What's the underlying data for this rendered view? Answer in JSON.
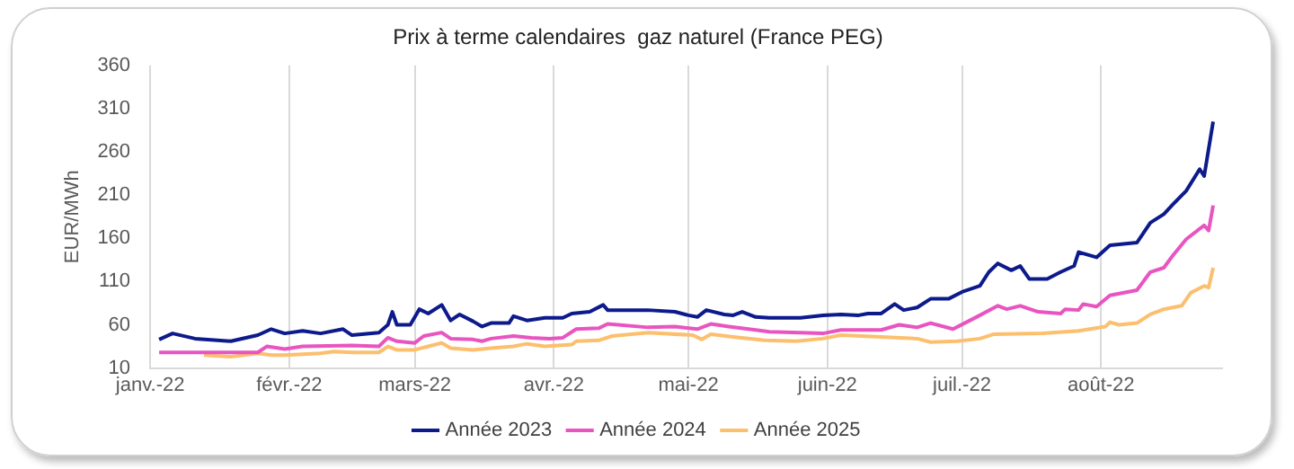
{
  "chart_data": {
    "type": "line",
    "title": "Prix à terme calendaires  gaz naturel (France PEG)",
    "ylabel": "EUR/MWh",
    "xlim": [
      "2022-01-01",
      "2022-08-28"
    ],
    "xticks": [
      {
        "value": "2022-01-01",
        "label": "janv.-22"
      },
      {
        "value": "2022-02-01",
        "label": "févr.-22"
      },
      {
        "value": "2022-03-01",
        "label": "mars-22"
      },
      {
        "value": "2022-04-01",
        "label": "avr.-22"
      },
      {
        "value": "2022-05-01",
        "label": "mai-22"
      },
      {
        "value": "2022-06-01",
        "label": "juin-22"
      },
      {
        "value": "2022-07-01",
        "label": "juil.-22"
      },
      {
        "value": "2022-08-01",
        "label": "août-22"
      }
    ],
    "ylim": [
      10,
      360
    ],
    "yticks": [
      10,
      60,
      110,
      160,
      210,
      260,
      310,
      360
    ],
    "grid": "x",
    "legend": "bottom",
    "marker": "none",
    "line_style": "solid",
    "series": [
      {
        "name": "Année 2023",
        "color": "#0d1a8c",
        "x": [
          "2022-01-03",
          "2022-01-06",
          "2022-01-11",
          "2022-01-19",
          "2022-01-25",
          "2022-01-28",
          "2022-01-31",
          "2022-02-04",
          "2022-02-08",
          "2022-02-13",
          "2022-02-15",
          "2022-02-21",
          "2022-02-23",
          "2022-02-24",
          "2022-02-25",
          "2022-02-28",
          "2022-03-02",
          "2022-03-04",
          "2022-03-07",
          "2022-03-09",
          "2022-03-11",
          "2022-03-14",
          "2022-03-16",
          "2022-03-18",
          "2022-03-22",
          "2022-03-23",
          "2022-03-26",
          "2022-03-30",
          "2022-04-03",
          "2022-04-05",
          "2022-04-09",
          "2022-04-12",
          "2022-04-13",
          "2022-04-22",
          "2022-04-28",
          "2022-05-01",
          "2022-05-03",
          "2022-05-05",
          "2022-05-09",
          "2022-05-11",
          "2022-05-13",
          "2022-05-16",
          "2022-05-19",
          "2022-05-26",
          "2022-05-31",
          "2022-06-04",
          "2022-06-08",
          "2022-06-10",
          "2022-06-13",
          "2022-06-16",
          "2022-06-18",
          "2022-06-21",
          "2022-06-24",
          "2022-06-28",
          "2022-07-01",
          "2022-07-05",
          "2022-07-07",
          "2022-07-09",
          "2022-07-12",
          "2022-07-14",
          "2022-07-16",
          "2022-07-20",
          "2022-07-23",
          "2022-07-26",
          "2022-07-27",
          "2022-07-31",
          "2022-08-03",
          "2022-08-09",
          "2022-08-12",
          "2022-08-15",
          "2022-08-17",
          "2022-08-20",
          "2022-08-23",
          "2022-08-24",
          "2022-08-26"
        ],
        "values": [
          43,
          50,
          44,
          41,
          48,
          55,
          50,
          53,
          50,
          55,
          48,
          51,
          60,
          75,
          60,
          60,
          78,
          73,
          83,
          65,
          72,
          64,
          58,
          62,
          62,
          70,
          65,
          68,
          68,
          73,
          75,
          83,
          77,
          77,
          75,
          71,
          69,
          77,
          72,
          71,
          75,
          69,
          68,
          68,
          71,
          72,
          71,
          73,
          73,
          84,
          77,
          80,
          90,
          90,
          98,
          105,
          121,
          131,
          123,
          128,
          113,
          113,
          121,
          128,
          144,
          138,
          152,
          155,
          178,
          188,
          199,
          215,
          240,
          232,
          295
        ]
      },
      {
        "name": "Année 2024",
        "color": "#e855c0",
        "x": [
          "2022-01-03",
          "2022-01-25",
          "2022-01-27",
          "2022-01-31",
          "2022-02-04",
          "2022-02-15",
          "2022-02-21",
          "2022-02-23",
          "2022-02-25",
          "2022-03-01",
          "2022-03-03",
          "2022-03-07",
          "2022-03-09",
          "2022-03-14",
          "2022-03-16",
          "2022-03-18",
          "2022-03-23",
          "2022-03-27",
          "2022-03-31",
          "2022-04-03",
          "2022-04-06",
          "2022-04-11",
          "2022-04-13",
          "2022-04-22",
          "2022-04-28",
          "2022-05-03",
          "2022-05-06",
          "2022-05-10",
          "2022-05-16",
          "2022-05-19",
          "2022-05-31",
          "2022-06-04",
          "2022-06-13",
          "2022-06-17",
          "2022-06-21",
          "2022-06-24",
          "2022-06-29",
          "2022-07-02",
          "2022-07-05",
          "2022-07-09",
          "2022-07-11",
          "2022-07-14",
          "2022-07-18",
          "2022-07-23",
          "2022-07-24",
          "2022-07-27",
          "2022-07-28",
          "2022-07-31",
          "2022-08-03",
          "2022-08-09",
          "2022-08-12",
          "2022-08-15",
          "2022-08-17",
          "2022-08-20",
          "2022-08-24",
          "2022-08-25",
          "2022-08-26"
        ],
        "values": [
          28,
          28,
          35,
          32,
          35,
          36,
          35,
          45,
          41,
          39,
          47,
          51,
          44,
          43,
          41,
          44,
          47,
          45,
          44,
          45,
          55,
          56,
          61,
          57,
          58,
          55,
          61,
          58,
          54,
          52,
          50,
          54,
          54,
          60,
          57,
          62,
          55,
          63,
          71,
          82,
          78,
          82,
          75,
          73,
          78,
          77,
          84,
          81,
          94,
          100,
          121,
          126,
          140,
          159,
          175,
          169,
          198
        ]
      },
      {
        "name": "Année 2025",
        "color": "#fcbf6e",
        "x": [
          "2022-01-13",
          "2022-01-19",
          "2022-01-25",
          "2022-01-28",
          "2022-01-31",
          "2022-02-08",
          "2022-02-11",
          "2022-02-15",
          "2022-02-21",
          "2022-02-23",
          "2022-02-25",
          "2022-03-01",
          "2022-03-04",
          "2022-03-07",
          "2022-03-09",
          "2022-03-14",
          "2022-03-18",
          "2022-03-23",
          "2022-03-26",
          "2022-03-30",
          "2022-04-05",
          "2022-04-06",
          "2022-04-11",
          "2022-04-14",
          "2022-04-22",
          "2022-05-02",
          "2022-05-04",
          "2022-05-06",
          "2022-05-11",
          "2022-05-18",
          "2022-05-25",
          "2022-05-31",
          "2022-06-04",
          "2022-06-13",
          "2022-06-21",
          "2022-06-24",
          "2022-06-30",
          "2022-07-05",
          "2022-07-08",
          "2022-07-19",
          "2022-07-27",
          "2022-08-02",
          "2022-08-03",
          "2022-08-05",
          "2022-08-09",
          "2022-08-12",
          "2022-08-15",
          "2022-08-19",
          "2022-08-21",
          "2022-08-24",
          "2022-08-25",
          "2022-08-26"
        ],
        "values": [
          25,
          23,
          27,
          25,
          25,
          27,
          29,
          28,
          28,
          35,
          31,
          31,
          35,
          39,
          33,
          31,
          33,
          35,
          38,
          35,
          37,
          41,
          42,
          47,
          51,
          48,
          43,
          49,
          46,
          42,
          41,
          44,
          48,
          46,
          44,
          40,
          41,
          44,
          49,
          50,
          53,
          58,
          63,
          60,
          62,
          72,
          78,
          82,
          97,
          105,
          103,
          126
        ]
      }
    ]
  }
}
